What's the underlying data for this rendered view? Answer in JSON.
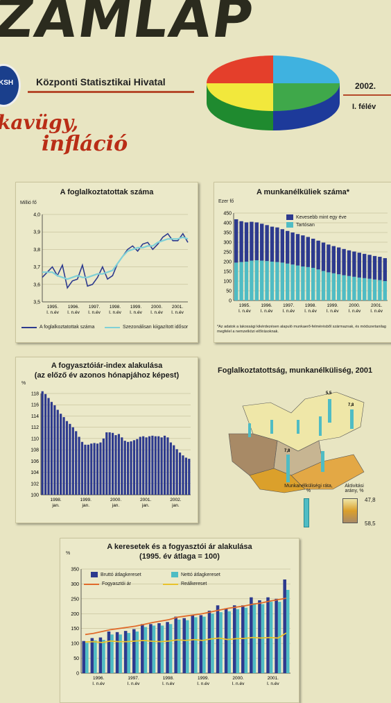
{
  "header": {
    "logo": "ZAMLAP",
    "ksh_abbr": "KSH",
    "office": "Központi Statisztikai Hivatal",
    "year": "2002.",
    "period": "I. félév",
    "script_line1": "kavügy,",
    "script_line2": "infláció"
  },
  "colors": {
    "dark_blue": "#2d3a8e",
    "cyan": "#4fbcc4",
    "orange": "#e06a2a",
    "yellow": "#e8c22a",
    "background": "#e8e5c2"
  },
  "chart_data": [
    {
      "type": "line",
      "title": "A foglalkoztatottak száma",
      "ylabel": "Millió fő",
      "ylim": [
        3.5,
        4.0
      ],
      "yticks": [
        "4,0",
        "3,9",
        "3,8",
        "3,7",
        "3,6",
        "3,5"
      ],
      "xticks": [
        "1995.\nI. n.év",
        "1996.\nI. n.év",
        "1997.\nI. n.év",
        "1998.\nI. n.év",
        "1999.\nI. n.év",
        "2000.\nI. n.év",
        "2001.\nI. n.év"
      ],
      "series": [
        {
          "name": "A foglalkoztatottak száma",
          "color": "#2d3a8e",
          "values": [
            3.64,
            3.67,
            3.7,
            3.65,
            3.71,
            3.58,
            3.62,
            3.63,
            3.71,
            3.59,
            3.6,
            3.64,
            3.7,
            3.63,
            3.65,
            3.72,
            3.76,
            3.8,
            3.82,
            3.79,
            3.83,
            3.84,
            3.8,
            3.83,
            3.87,
            3.89,
            3.85,
            3.85,
            3.89,
            3.84
          ]
        },
        {
          "name": "Szezonálisan kiigazított idősor",
          "color": "#7fd0d6",
          "values": [
            3.67,
            3.67,
            3.67,
            3.65,
            3.64,
            3.63,
            3.64,
            3.65,
            3.64,
            3.64,
            3.65,
            3.66,
            3.66,
            3.67,
            3.68,
            3.72,
            3.76,
            3.79,
            3.8,
            3.81,
            3.81,
            3.82,
            3.82,
            3.84,
            3.85,
            3.86,
            3.86,
            3.86,
            3.87,
            3.86
          ]
        }
      ]
    },
    {
      "type": "bar",
      "title": "A munkanélküliek száma*",
      "ylabel": "Ezer fő",
      "ylim": [
        0,
        450
      ],
      "yticks": [
        "450",
        "400",
        "350",
        "300",
        "250",
        "200",
        "150",
        "100",
        "50",
        "0"
      ],
      "xticks": [
        "1995.\nI. n.év",
        "1996.\nI. n.év",
        "1997.\nI. n.év",
        "1998.\nI. n.év",
        "1999.\nI. n.év",
        "2000.\nI. n.év",
        "2001.\nI. n.év"
      ],
      "series": [
        {
          "name": "Kevesebb mint egy éve",
          "color": "#2d3a8e",
          "values": [
            223,
            210,
            202,
            200,
            195,
            190,
            185,
            180,
            178,
            172,
            168,
            165,
            162,
            160,
            155,
            150,
            148,
            146,
            143,
            140,
            138,
            135,
            132,
            130,
            128,
            125,
            123,
            121,
            120,
            118
          ]
        },
        {
          "name": "Tartósan",
          "color": "#4fbcc4",
          "values": [
            195,
            198,
            200,
            205,
            207,
            205,
            203,
            200,
            198,
            195,
            190,
            185,
            180,
            175,
            172,
            168,
            160,
            152,
            145,
            140,
            135,
            130,
            126,
            122,
            118,
            115,
            112,
            108,
            105,
            100
          ]
        }
      ],
      "note": "*Az adatok a lakossági kikérdezésen alapuló munkaerő-felmérésből származnak, és módszertanilag megfelel a nemzetközi előírásoknak."
    },
    {
      "type": "bar",
      "title": "A fogyasztóiár-index alakulása",
      "subtitle": "(az előző év azonos hónapjához képest)",
      "ylabel": "%",
      "ylim": [
        100,
        118
      ],
      "yticks": [
        "118",
        "116",
        "114",
        "112",
        "110",
        "108",
        "106",
        "104",
        "102",
        "100"
      ],
      "xticks": [
        "1998.\njan.",
        "1999.\njan.",
        "2000.\njan.",
        "2001.\njan.",
        "2002.\njan."
      ],
      "values": [
        118.4,
        117.9,
        117.2,
        116.5,
        115.9,
        115.1,
        114.4,
        113.8,
        113.1,
        112.6,
        112.0,
        111.3,
        110.3,
        109.4,
        108.9,
        108.9,
        109.1,
        109.2,
        109.1,
        109.3,
        110.0,
        111.1,
        111.1,
        111.0,
        110.6,
        110.8,
        110.2,
        109.6,
        109.4,
        109.5,
        109.7,
        109.9,
        110.3,
        110.4,
        110.2,
        110.4,
        110.5,
        110.4,
        110.4,
        110.2,
        110.5,
        110.2,
        109.3,
        108.8,
        108.1,
        107.5,
        107.0,
        106.6,
        106.4
      ]
    },
    {
      "type": "bar",
      "title": "A keresetek és a fogyasztói ár alakulása",
      "subtitle": "(1995. év átlaga = 100)",
      "ylabel": "%",
      "ylim": [
        0,
        350
      ],
      "yticks": [
        "350",
        "300",
        "250",
        "200",
        "150",
        "100",
        "50",
        "0"
      ],
      "xticks": [
        "1996.\nI. n.év",
        "1997.\nI. n.év",
        "1998.\nI. n.év",
        "1999.\nI. n.év",
        "2000.\nI. n.év",
        "2001.\nI. n.év"
      ],
      "series": [
        {
          "name": "Bruttó átlagkereset",
          "color": "#2d3a8e",
          "values": [
            108,
            118,
            120,
            140,
            138,
            142,
            148,
            165,
            165,
            168,
            172,
            190,
            185,
            195,
            195,
            210,
            228,
            218,
            228,
            228,
            255,
            245,
            255,
            250,
            315
          ]
        },
        {
          "name": "Nettó átlagkereset",
          "color": "#4fbcc4",
          "values": [
            102,
            110,
            112,
            130,
            130,
            135,
            140,
            155,
            160,
            160,
            165,
            180,
            178,
            188,
            190,
            200,
            205,
            208,
            215,
            220,
            235,
            232,
            240,
            240,
            280
          ]
        },
        {
          "name": "Fogyasztói ár",
          "color": "#e06a2a",
          "values": [
            130,
            134,
            140,
            146,
            150,
            154,
            158,
            164,
            170,
            175,
            180,
            188,
            192,
            196,
            200,
            206,
            212,
            218,
            222,
            226,
            232,
            236,
            242,
            247,
            252
          ]
        },
        {
          "name": "Reálkereset",
          "color": "#e8c22a",
          "values": [
            105,
            106,
            103,
            108,
            106,
            106,
            108,
            110,
            107,
            106,
            108,
            112,
            110,
            113,
            110,
            115,
            118,
            113,
            116,
            117,
            120,
            118,
            120,
            118,
            135
          ]
        }
      ]
    }
  ],
  "map": {
    "title": "Foglalkoztatottság, munkanélküliség, 2001",
    "unemployment_label": "Munkanélküliségi ráta, %",
    "activity_label": "Aktivitási arány, %",
    "activity_max": "47,8",
    "activity_min": "58,5",
    "unemployment_values": [
      "5,5",
      "7,8",
      "7,8"
    ]
  }
}
